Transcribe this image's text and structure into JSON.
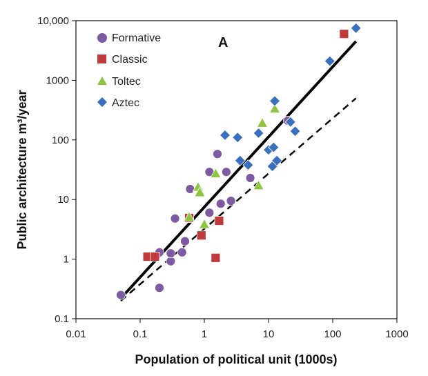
{
  "chart_data": {
    "type": "scatter",
    "panel_label": "A",
    "xlabel": "Population of political unit (1000s)",
    "ylabel": "Public architecture m³/year",
    "x_scale": "log",
    "y_scale": "log",
    "xlim": [
      0.01,
      1000
    ],
    "ylim": [
      0.1,
      10000
    ],
    "x_tick_labels": [
      "0.01",
      "0.1",
      "1",
      "10",
      "100",
      "1000"
    ],
    "y_tick_labels": [
      "0.1",
      "1",
      "10",
      "100",
      "1000",
      "10,000"
    ],
    "grid": false,
    "legend_position": "top-left",
    "colors": {
      "Formative": "#7e5aa2",
      "Classic": "#c0393b",
      "Toltec": "#8cc63f",
      "Aztec": "#3a6fbd",
      "fit_line": "#000000"
    },
    "series": [
      {
        "name": "Formative",
        "marker": "circle",
        "points": [
          [
            0.05,
            0.25
          ],
          [
            0.2,
            0.33
          ],
          [
            0.2,
            1.3
          ],
          [
            0.3,
            0.92
          ],
          [
            0.3,
            1.25
          ],
          [
            0.45,
            1.3
          ],
          [
            0.5,
            2.0
          ],
          [
            0.35,
            4.8
          ],
          [
            0.6,
            15.0
          ],
          [
            1.2,
            6.0
          ],
          [
            1.2,
            29.0
          ],
          [
            1.6,
            58.0
          ],
          [
            1.8,
            8.5
          ],
          [
            2.6,
            9.5
          ],
          [
            2.2,
            29.0
          ],
          [
            5.2,
            23.0
          ],
          [
            20.0,
            210.0
          ]
        ]
      },
      {
        "name": "Classic",
        "marker": "square",
        "points": [
          [
            0.13,
            1.1
          ],
          [
            0.17,
            1.1
          ],
          [
            0.58,
            4.9
          ],
          [
            0.9,
            2.5
          ],
          [
            1.5,
            1.05
          ],
          [
            1.7,
            4.4
          ],
          [
            150.0,
            6000.0
          ]
        ]
      },
      {
        "name": "Toltec",
        "marker": "triangle",
        "points": [
          [
            0.58,
            5.0
          ],
          [
            0.8,
            16.0
          ],
          [
            0.85,
            13.0
          ],
          [
            1.0,
            3.8
          ],
          [
            1.5,
            27.0
          ],
          [
            7.0,
            17.0
          ],
          [
            8.0,
            190.0
          ],
          [
            12.5,
            330.0
          ]
        ]
      },
      {
        "name": "Aztec",
        "marker": "diamond",
        "points": [
          [
            2.1,
            120.0
          ],
          [
            3.3,
            110.0
          ],
          [
            3.6,
            45.0
          ],
          [
            4.8,
            38.0
          ],
          [
            7.0,
            130.0
          ],
          [
            10.0,
            68.0
          ],
          [
            11.5,
            36.0
          ],
          [
            12.0,
            75.0
          ],
          [
            12.5,
            450.0
          ],
          [
            13.5,
            45.0
          ],
          [
            22.0,
            200.0
          ],
          [
            26.0,
            140.0
          ],
          [
            90.0,
            2100.0
          ],
          [
            230.0,
            7500.0
          ]
        ]
      }
    ],
    "lines": [
      {
        "style": "solid",
        "x": [
          0.05,
          230.0
        ],
        "y": [
          0.22,
          4500.0
        ]
      },
      {
        "style": "dashed",
        "x": [
          0.05,
          230.0
        ],
        "y": [
          0.2,
          500.0
        ]
      }
    ]
  }
}
